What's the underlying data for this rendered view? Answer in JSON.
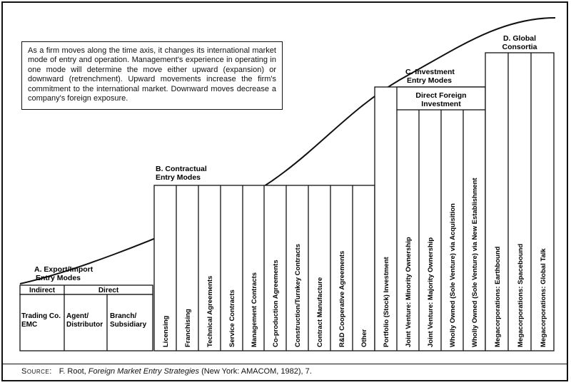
{
  "description": "As a firm moves along the time axis, it changes its international market mode of entry and operation. Management's experience in operating in one mode will determine the move either upward (expansion) or downward (retrenchment). Upward movements increase the firm's commitment to the international market. Downward moves decrease a company's foreign exposure.",
  "stages": {
    "a": {
      "title_1": "A. Export/Import",
      "title_2": "Entry Modes",
      "indirect": "Indirect",
      "direct": "Direct",
      "trading_1": "Trading Co.",
      "trading_2": "EMC",
      "agent_1": "Agent/",
      "agent_2": "Distributor",
      "branch_1": "Branch/",
      "branch_2": "Subsidiary"
    },
    "b": {
      "title_1": "B. Contractual",
      "title_2": "Entry Modes",
      "items": [
        "Licensing",
        "Franchising",
        "Technical Agreements",
        "Service Contracts",
        "Management Contracts",
        "Co-production Agreements",
        "Construction/Turnkey Contracts",
        "Contract Manufacture",
        "R&D Cooperative Agreements",
        "Other"
      ]
    },
    "c": {
      "title_1": "C. Investment",
      "title_2": "Entry Modes",
      "sub_1": "Direct Foreign",
      "sub_2": "Investment",
      "items": [
        "Portfolio (Stock) Investment",
        "Joint Venture: Minority Ownership",
        "Joint Venture: Majority Ownership",
        "Wholly Owned (Sole Venture) via Acquisition",
        "Wholly Owned (Sole Venture) via New Establishment"
      ]
    },
    "d": {
      "title_1": "D. Global",
      "title_2": "Consortia",
      "items": [
        "Megacorporations: Earthbound",
        "Megacorporations: Spacebound",
        "Megacorporations: Global Talk"
      ]
    }
  },
  "source": {
    "label": "Source:",
    "author": "F. Root, ",
    "book": "Foreign Market Entry Strategies",
    "rest": " (New York: AMACOM, 1982), 7."
  }
}
